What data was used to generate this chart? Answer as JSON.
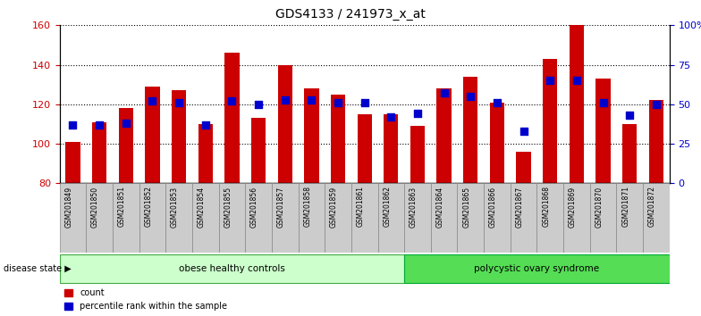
{
  "title": "GDS4133 / 241973_x_at",
  "samples": [
    "GSM201849",
    "GSM201850",
    "GSM201851",
    "GSM201852",
    "GSM201853",
    "GSM201854",
    "GSM201855",
    "GSM201856",
    "GSM201857",
    "GSM201858",
    "GSM201859",
    "GSM201861",
    "GSM201862",
    "GSM201863",
    "GSM201864",
    "GSM201865",
    "GSM201866",
    "GSM201867",
    "GSM201868",
    "GSM201869",
    "GSM201870",
    "GSM201871",
    "GSM201872"
  ],
  "counts": [
    101,
    111,
    118,
    129,
    127,
    110,
    146,
    113,
    140,
    128,
    125,
    115,
    115,
    109,
    128,
    134,
    121,
    96,
    143,
    160,
    133,
    110,
    122
  ],
  "percentiles": [
    37,
    37,
    38,
    52,
    51,
    37,
    52,
    50,
    53,
    53,
    51,
    51,
    42,
    44,
    57,
    55,
    51,
    33,
    65,
    65,
    51,
    43,
    50
  ],
  "group1_label": "obese healthy controls",
  "group2_label": "polycystic ovary syndrome",
  "group1_count": 13,
  "group2_count": 10,
  "ylim_left": [
    80,
    160
  ],
  "ylim_right": [
    0,
    100
  ],
  "yticks_left": [
    80,
    100,
    120,
    140,
    160
  ],
  "yticks_right": [
    0,
    25,
    50,
    75,
    100
  ],
  "ytick_right_labels": [
    "0",
    "25",
    "50",
    "75",
    "100%"
  ],
  "bar_color": "#CC0000",
  "dot_color": "#0000CC",
  "group1_facecolor": "#CCFFCC",
  "group1_edgecolor": "#44AA44",
  "group2_facecolor": "#55DD55",
  "group2_edgecolor": "#00AA33",
  "tick_bg": "#CCCCCC",
  "tick_edge": "#888888",
  "disease_state_label": "disease state"
}
